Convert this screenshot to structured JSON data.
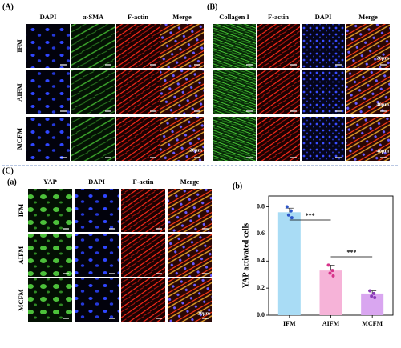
{
  "panel_a": {
    "label": "(A)",
    "headers": [
      "DAPI",
      "α-SMA",
      "F-actin",
      "Merge"
    ],
    "row_labels": [
      "IFM",
      "AIFM",
      "MCFM"
    ],
    "scale_bar": "20μm"
  },
  "panel_b": {
    "label": "(B)",
    "headers": [
      "Collagen I",
      "F-actin",
      "DAPI",
      "Merge"
    ],
    "scale_bars": [
      "20μm",
      "40μm",
      "40μm"
    ]
  },
  "panel_c": {
    "label": "(C)",
    "sub_label": "(a)",
    "headers": [
      "YAP",
      "DAPI",
      "F-actin",
      "Merge"
    ],
    "row_labels": [
      "IFM",
      "AIFM",
      "MCFM"
    ],
    "scale_bar": "20μm",
    "chart_label": "(b)"
  },
  "chart_data": {
    "type": "bar",
    "ylabel": "YAP activated cells",
    "categories": [
      "IFM",
      "AIFM",
      "MCFM"
    ],
    "values": [
      0.76,
      0.33,
      0.16
    ],
    "errors": [
      0.03,
      0.04,
      0.02
    ],
    "colors": [
      "#a9dcf5",
      "#f6b3d8",
      "#d9a6f0"
    ],
    "point_colors": [
      "#2b55c9",
      "#d6338a",
      "#8a3bb8"
    ],
    "points": [
      [
        0.8,
        0.77,
        0.74,
        0.72
      ],
      [
        0.37,
        0.33,
        0.31,
        0.29
      ],
      [
        0.18,
        0.16,
        0.14,
        0.13
      ]
    ],
    "annotations": [
      "***",
      "***"
    ],
    "ylim": [
      0,
      0.88
    ],
    "yticks": [
      {
        "value": 0,
        "label": "0.0"
      },
      0.2,
      0.4,
      0.6,
      0.8
    ]
  }
}
